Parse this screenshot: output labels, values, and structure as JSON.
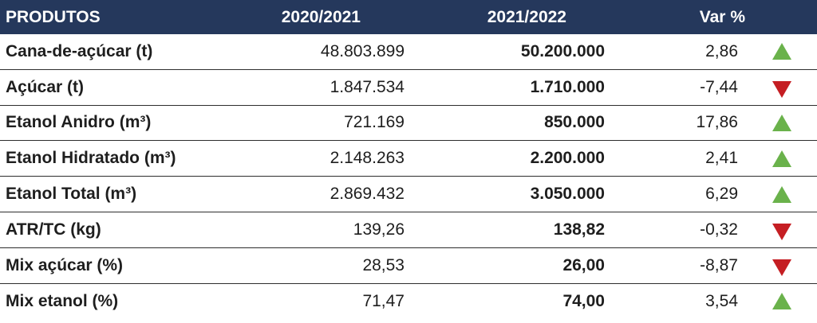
{
  "header": {
    "produtos": "PRODUTOS",
    "year1": "2020/2021",
    "year2": "2021/2022",
    "var": "Var %"
  },
  "colors": {
    "header_bg": "#25385c",
    "up": "#6ab24b",
    "down": "#c51e23"
  },
  "rows": [
    {
      "produto": "Cana-de-açúcar (t)",
      "y1": "48.803.899",
      "y2": "50.200.000",
      "var": "2,86",
      "trend": "up"
    },
    {
      "produto": "Açúcar (t)",
      "y1": "1.847.534",
      "y2": "1.710.000",
      "var": "-7,44",
      "trend": "down"
    },
    {
      "produto": "Etanol Anidro (m³)",
      "y1": "721.169",
      "y2": "850.000",
      "var": "17,86",
      "trend": "up"
    },
    {
      "produto": "Etanol Hidratado (m³)",
      "y1": "2.148.263",
      "y2": "2.200.000",
      "var": "2,41",
      "trend": "up"
    },
    {
      "produto": "Etanol Total (m³)",
      "y1": "2.869.432",
      "y2": "3.050.000",
      "var": "6,29",
      "trend": "up"
    },
    {
      "produto": "ATR/TC (kg)",
      "y1": "139,26",
      "y2": "138,82",
      "var": "-0,32",
      "trend": "down"
    },
    {
      "produto": "Mix açúcar (%)",
      "y1": "28,53",
      "y2": "26,00",
      "var": "-8,87",
      "trend": "down"
    },
    {
      "produto": "Mix etanol (%)",
      "y1": "71,47",
      "y2": "74,00",
      "var": "3,54",
      "trend": "up"
    }
  ]
}
